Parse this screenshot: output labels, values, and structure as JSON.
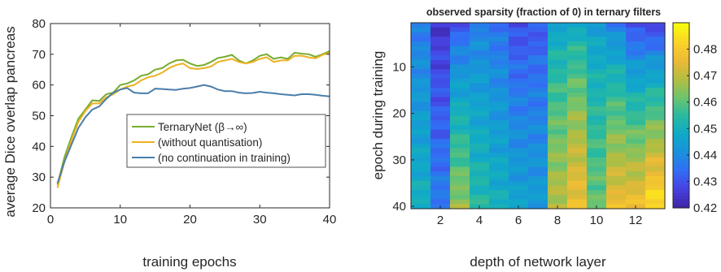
{
  "chart_data": [
    {
      "type": "line",
      "xlabel": "training epochs",
      "ylabel": "average Dice overlap pancreas",
      "xlim": [
        0,
        40
      ],
      "ylim": [
        20,
        80
      ],
      "xticks": [
        0,
        10,
        20,
        30,
        40
      ],
      "yticks": [
        20,
        30,
        40,
        50,
        60,
        70,
        80
      ],
      "grid": false,
      "legend_position": "center-right",
      "series": [
        {
          "name": "TernaryNet (β→∞)",
          "color": "#77ac30",
          "x": [
            1,
            2,
            3,
            4,
            5,
            6,
            7,
            8,
            9,
            10,
            11,
            12,
            13,
            14,
            15,
            16,
            17,
            18,
            19,
            20,
            21,
            22,
            23,
            24,
            25,
            26,
            27,
            28,
            29,
            30,
            31,
            32,
            33,
            34,
            35,
            36,
            37,
            38,
            39,
            40
          ],
          "y": [
            27.5,
            36.5,
            43,
            49,
            52,
            55,
            54.8,
            57,
            57.5,
            60,
            60.5,
            61.5,
            63,
            63.5,
            65,
            65.5,
            67,
            68,
            68.2,
            67,
            66.2,
            66.5,
            67.5,
            68.8,
            69.2,
            69.8,
            68,
            67,
            68,
            69.5,
            70,
            68.5,
            69,
            68.5,
            70.5,
            70.2,
            70,
            69.2,
            70,
            71
          ]
        },
        {
          "name": "(without quantisation)",
          "color": "#edb120",
          "x": [
            1,
            2,
            3,
            4,
            5,
            6,
            7,
            8,
            9,
            10,
            11,
            12,
            13,
            14,
            15,
            16,
            17,
            18,
            19,
            20,
            21,
            22,
            23,
            24,
            25,
            26,
            27,
            28,
            29,
            30,
            31,
            32,
            33,
            34,
            35,
            36,
            37,
            38,
            39,
            40
          ],
          "y": [
            26.5,
            35,
            42,
            48,
            51.5,
            54,
            54,
            56,
            57,
            58.5,
            59.5,
            60,
            61.5,
            62.5,
            63,
            64,
            65.5,
            66.5,
            67,
            65.5,
            65.2,
            65.5,
            66,
            67.5,
            68,
            68.5,
            67.5,
            67,
            67.5,
            68.5,
            69,
            67.5,
            68,
            68,
            69.5,
            69.5,
            69,
            68.7,
            69.8,
            70.5
          ]
        },
        {
          "name": "(no continuation in training)",
          "color": "#4a7eaa",
          "x": [
            1,
            2,
            3,
            4,
            5,
            6,
            7,
            8,
            9,
            10,
            11,
            12,
            13,
            14,
            15,
            16,
            17,
            18,
            19,
            20,
            21,
            22,
            23,
            24,
            25,
            26,
            27,
            28,
            29,
            30,
            31,
            32,
            33,
            34,
            35,
            36,
            37,
            38,
            39,
            40
          ],
          "y": [
            28,
            35,
            40.5,
            46,
            49.5,
            52,
            53,
            55.5,
            57.5,
            58.5,
            59,
            57.5,
            57.3,
            57.3,
            58.8,
            58.7,
            58.5,
            58.4,
            58.8,
            59,
            59.5,
            60,
            59.5,
            58.5,
            58,
            58,
            57.5,
            57.3,
            57.4,
            57.8,
            57.5,
            57.3,
            57,
            56.8,
            56.6,
            57,
            57,
            56.8,
            56.5,
            56.3
          ]
        }
      ]
    },
    {
      "type": "heatmap",
      "title": "observed sparsity (fraction of 0) in ternary filters",
      "xlabel": "depth of network layer",
      "ylabel": "epoch during training",
      "xlim": [
        0.5,
        13.5
      ],
      "ylim": [
        0.5,
        40.5
      ],
      "xticks": [
        2,
        4,
        6,
        8,
        10,
        12
      ],
      "yticks": [
        10,
        20,
        30,
        40
      ],
      "colorbar_range": [
        0.42,
        0.49
      ],
      "colorbar_ticks": [
        0.42,
        0.43,
        0.44,
        0.45,
        0.46,
        0.47,
        0.48
      ],
      "colormap": "parula",
      "columns": [
        1,
        2,
        3,
        4,
        5,
        6,
        7,
        8,
        9,
        10,
        11,
        12,
        13
      ],
      "rows_epochs": 40,
      "column_profiles": [
        {
          "start": 0.436,
          "end": 0.45
        },
        {
          "start": 0.424,
          "end": 0.437
        },
        {
          "start": 0.43,
          "end": 0.466
        },
        {
          "start": 0.437,
          "end": 0.454
        },
        {
          "start": 0.434,
          "end": 0.45
        },
        {
          "start": 0.428,
          "end": 0.446
        },
        {
          "start": 0.43,
          "end": 0.444
        },
        {
          "start": 0.446,
          "end": 0.47
        },
        {
          "start": 0.448,
          "end": 0.478
        },
        {
          "start": 0.444,
          "end": 0.462
        },
        {
          "start": 0.437,
          "end": 0.477
        },
        {
          "start": 0.427,
          "end": 0.478
        },
        {
          "start": 0.425,
          "end": 0.486
        }
      ]
    }
  ],
  "legend": {
    "entries": [
      "TernaryNet (β→∞)",
      "(without quantisation)",
      "(no continuation in training)"
    ]
  }
}
